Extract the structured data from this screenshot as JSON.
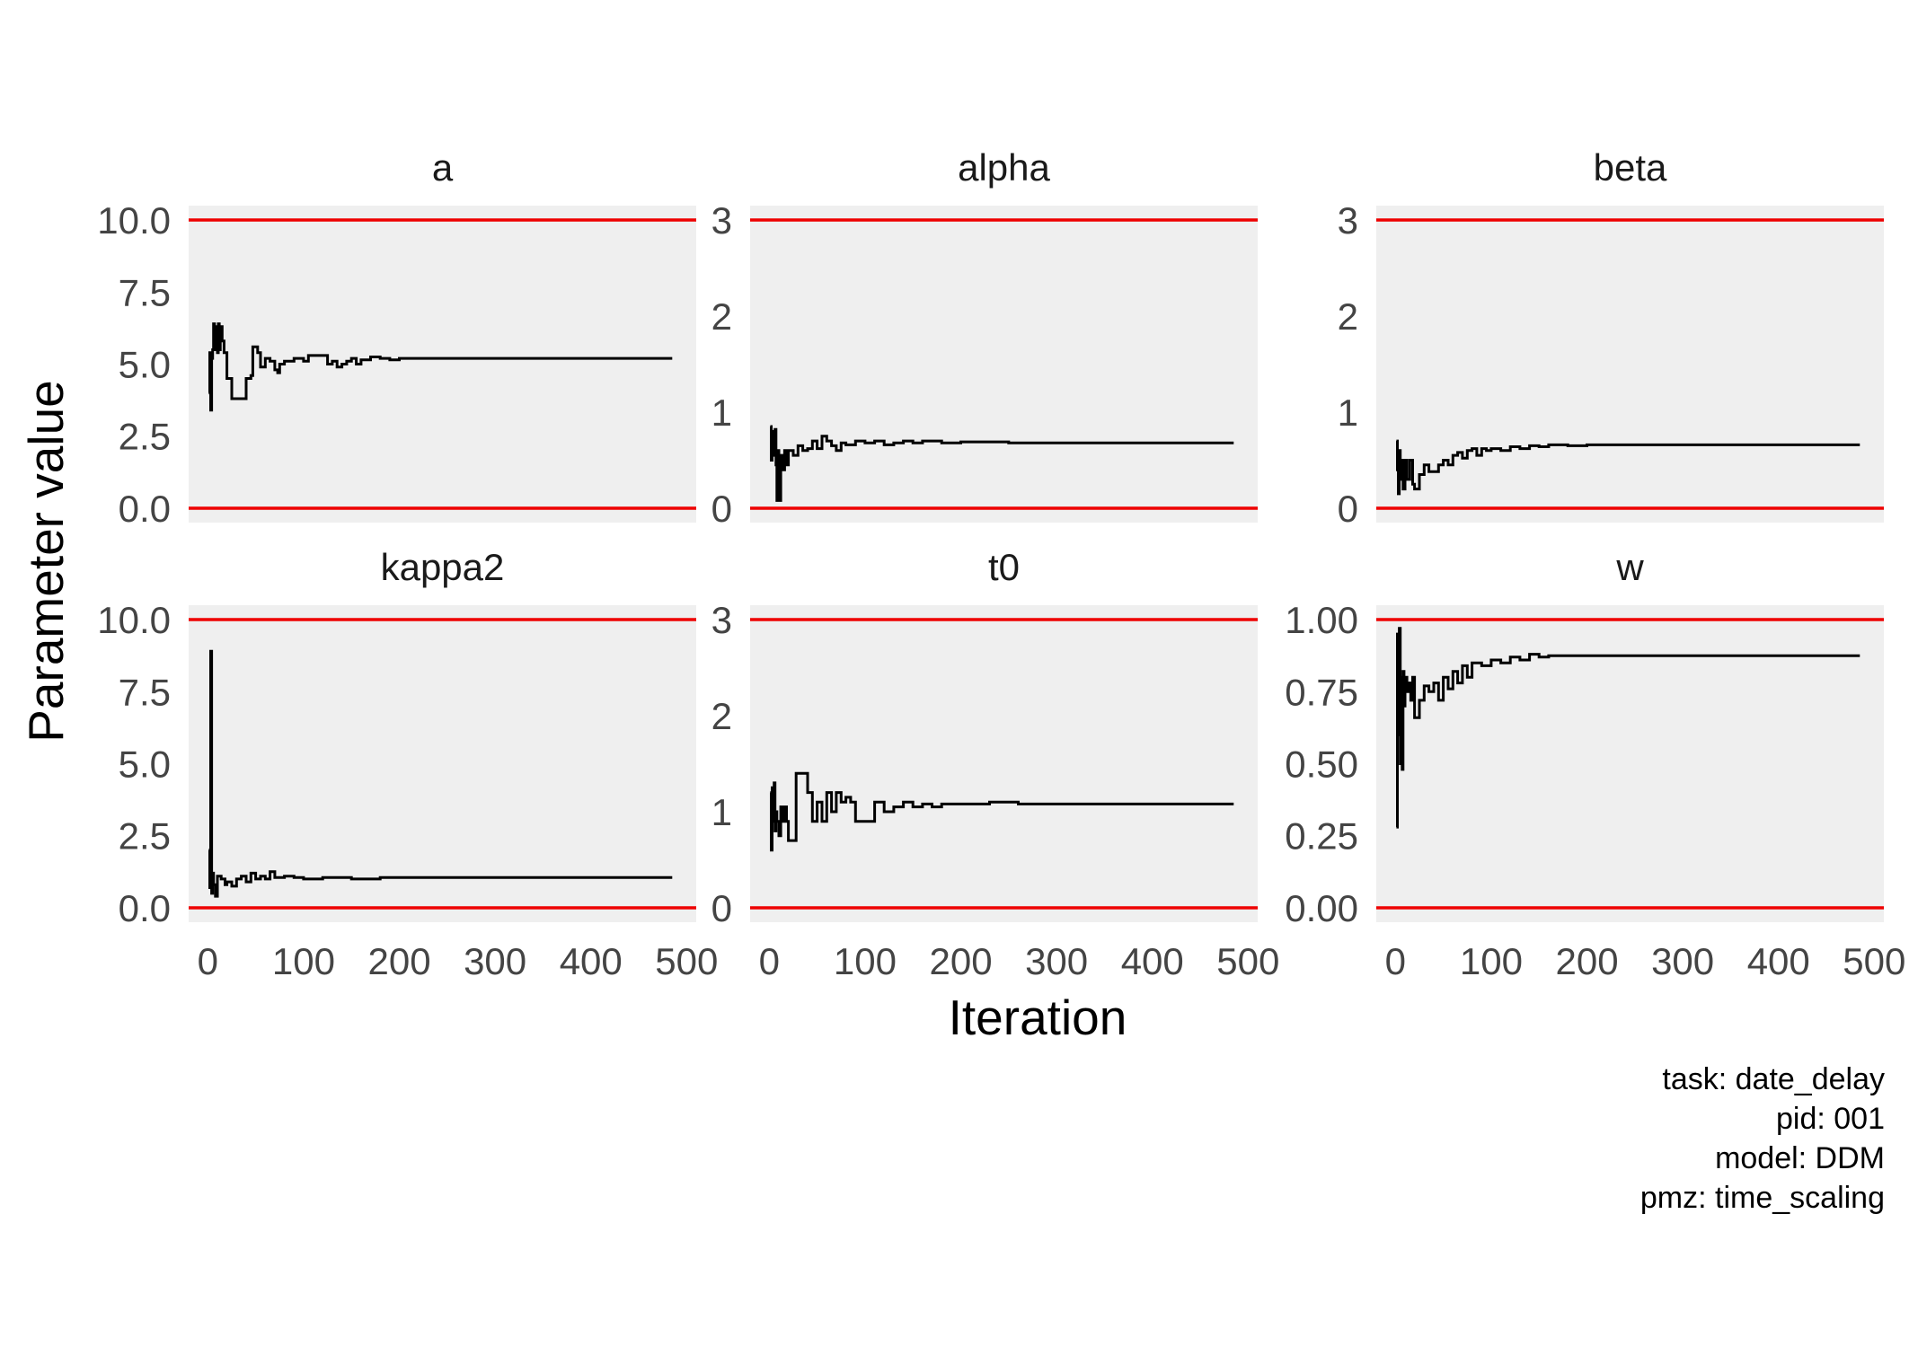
{
  "chart_data": {
    "type": "line",
    "title": "",
    "xlabel": "Iteration",
    "ylabel": "Parameter value",
    "caption": [
      "task: date_delay",
      "pid: 001",
      "model: DDM",
      "pmz: time_scaling"
    ],
    "colors": {
      "trace": "#000000",
      "bounds": "#ee0000",
      "panel_background": "#efefef"
    },
    "grid": false,
    "legend": "none",
    "x_ticks": [
      0,
      100,
      200,
      300,
      400,
      500
    ],
    "xlim": [
      -20,
      510
    ],
    "panels": [
      {
        "name": "a",
        "ylim": [
          -0.5,
          10.5
        ],
        "y_ticks": [
          0,
          2.5,
          5,
          7.5,
          10
        ],
        "y_tick_labels": [
          "0.0",
          "2.5",
          "5.0",
          "7.5",
          "10.0"
        ],
        "bounds": [
          0,
          10
        ],
        "trace": [
          [
            1,
            4.0
          ],
          [
            2,
            5.4
          ],
          [
            3,
            3.4
          ],
          [
            4,
            5.2
          ],
          [
            5,
            5.5
          ],
          [
            6,
            6.4
          ],
          [
            7,
            5.5
          ],
          [
            8,
            6.3
          ],
          [
            9,
            5.8
          ],
          [
            10,
            5.4
          ],
          [
            11,
            6.4
          ],
          [
            12,
            5.5
          ],
          [
            13,
            6.3
          ],
          [
            15,
            5.8
          ],
          [
            17,
            5.4
          ],
          [
            20,
            4.5
          ],
          [
            25,
            3.8
          ],
          [
            35,
            3.8
          ],
          [
            40,
            4.5
          ],
          [
            45,
            4.6
          ],
          [
            47,
            5.6
          ],
          [
            52,
            5.4
          ],
          [
            55,
            4.9
          ],
          [
            60,
            5.2
          ],
          [
            65,
            5.1
          ],
          [
            70,
            4.8
          ],
          [
            73,
            4.7
          ],
          [
            75,
            5.0
          ],
          [
            80,
            5.1
          ],
          [
            90,
            5.2
          ],
          [
            100,
            5.1
          ],
          [
            105,
            5.3
          ],
          [
            120,
            5.3
          ],
          [
            125,
            5.0
          ],
          [
            130,
            5.1
          ],
          [
            135,
            4.9
          ],
          [
            140,
            5.0
          ],
          [
            145,
            5.1
          ],
          [
            150,
            5.2
          ],
          [
            155,
            5.0
          ],
          [
            160,
            5.15
          ],
          [
            170,
            5.25
          ],
          [
            180,
            5.2
          ],
          [
            190,
            5.15
          ],
          [
            200,
            5.2
          ],
          [
            230,
            5.2
          ],
          [
            260,
            5.2
          ],
          [
            300,
            5.2
          ],
          [
            350,
            5.2
          ],
          [
            400,
            5.2
          ],
          [
            450,
            5.2
          ],
          [
            485,
            5.2
          ]
        ]
      },
      {
        "name": "alpha",
        "ylim": [
          -0.15,
          3.15
        ],
        "y_ticks": [
          0,
          1,
          2,
          3
        ],
        "y_tick_labels": [
          "0",
          "1",
          "2",
          "3"
        ],
        "bounds": [
          0,
          3
        ],
        "trace": [
          [
            1,
            0.85
          ],
          [
            2,
            0.5
          ],
          [
            3,
            0.8
          ],
          [
            5,
            0.55
          ],
          [
            6,
            0.82
          ],
          [
            7,
            0.45
          ],
          [
            8,
            0.08
          ],
          [
            9,
            0.6
          ],
          [
            10,
            0.08
          ],
          [
            12,
            0.55
          ],
          [
            14,
            0.4
          ],
          [
            16,
            0.6
          ],
          [
            18,
            0.45
          ],
          [
            20,
            0.6
          ],
          [
            25,
            0.55
          ],
          [
            30,
            0.65
          ],
          [
            35,
            0.6
          ],
          [
            40,
            0.62
          ],
          [
            45,
            0.7
          ],
          [
            50,
            0.62
          ],
          [
            55,
            0.75
          ],
          [
            60,
            0.7
          ],
          [
            65,
            0.65
          ],
          [
            70,
            0.6
          ],
          [
            75,
            0.68
          ],
          [
            80,
            0.66
          ],
          [
            90,
            0.7
          ],
          [
            100,
            0.68
          ],
          [
            110,
            0.7
          ],
          [
            120,
            0.66
          ],
          [
            130,
            0.68
          ],
          [
            140,
            0.7
          ],
          [
            150,
            0.68
          ],
          [
            160,
            0.7
          ],
          [
            180,
            0.68
          ],
          [
            200,
            0.69
          ],
          [
            250,
            0.68
          ],
          [
            300,
            0.68
          ],
          [
            350,
            0.68
          ],
          [
            400,
            0.68
          ],
          [
            450,
            0.68
          ],
          [
            485,
            0.68
          ]
        ]
      },
      {
        "name": "beta",
        "ylim": [
          -0.15,
          3.15
        ],
        "y_ticks": [
          0,
          1,
          2,
          3
        ],
        "y_tick_labels": [
          "0",
          "1",
          "2",
          "3"
        ],
        "bounds": [
          0,
          3
        ],
        "trace": [
          [
            1,
            0.7
          ],
          [
            2,
            0.4
          ],
          [
            3,
            0.15
          ],
          [
            4,
            0.6
          ],
          [
            5,
            0.3
          ],
          [
            6,
            0.5
          ],
          [
            8,
            0.2
          ],
          [
            10,
            0.5
          ],
          [
            12,
            0.3
          ],
          [
            15,
            0.5
          ],
          [
            18,
            0.25
          ],
          [
            20,
            0.2
          ],
          [
            25,
            0.35
          ],
          [
            30,
            0.45
          ],
          [
            35,
            0.38
          ],
          [
            40,
            0.38
          ],
          [
            45,
            0.45
          ],
          [
            50,
            0.5
          ],
          [
            55,
            0.45
          ],
          [
            60,
            0.55
          ],
          [
            65,
            0.58
          ],
          [
            70,
            0.52
          ],
          [
            75,
            0.6
          ],
          [
            80,
            0.62
          ],
          [
            85,
            0.55
          ],
          [
            90,
            0.62
          ],
          [
            95,
            0.6
          ],
          [
            100,
            0.62
          ],
          [
            110,
            0.6
          ],
          [
            120,
            0.64
          ],
          [
            130,
            0.62
          ],
          [
            140,
            0.65
          ],
          [
            150,
            0.64
          ],
          [
            160,
            0.66
          ],
          [
            180,
            0.65
          ],
          [
            200,
            0.66
          ],
          [
            250,
            0.66
          ],
          [
            300,
            0.66
          ],
          [
            350,
            0.66
          ],
          [
            400,
            0.66
          ],
          [
            450,
            0.66
          ],
          [
            485,
            0.66
          ]
        ]
      },
      {
        "name": "kappa2",
        "ylim": [
          -0.5,
          10.5
        ],
        "y_ticks": [
          0,
          2.5,
          5,
          7.5,
          10
        ],
        "y_tick_labels": [
          "0.0",
          "2.5",
          "5.0",
          "7.5",
          "10.0"
        ],
        "bounds": [
          0,
          10
        ],
        "trace": [
          [
            1,
            2.0
          ],
          [
            2,
            0.7
          ],
          [
            3,
            8.9
          ],
          [
            4,
            0.5
          ],
          [
            5,
            1.2
          ],
          [
            6,
            0.8
          ],
          [
            8,
            0.4
          ],
          [
            10,
            1.1
          ],
          [
            14,
            1.0
          ],
          [
            18,
            0.8
          ],
          [
            20,
            0.9
          ],
          [
            25,
            0.75
          ],
          [
            30,
            1.0
          ],
          [
            35,
            1.1
          ],
          [
            40,
            0.9
          ],
          [
            45,
            1.2
          ],
          [
            50,
            1.0
          ],
          [
            55,
            1.1
          ],
          [
            60,
            1.0
          ],
          [
            65,
            1.25
          ],
          [
            70,
            1.05
          ],
          [
            80,
            1.1
          ],
          [
            90,
            1.05
          ],
          [
            100,
            1.0
          ],
          [
            120,
            1.05
          ],
          [
            150,
            1.0
          ],
          [
            180,
            1.05
          ],
          [
            200,
            1.05
          ],
          [
            250,
            1.05
          ],
          [
            300,
            1.05
          ],
          [
            350,
            1.05
          ],
          [
            400,
            1.05
          ],
          [
            450,
            1.05
          ],
          [
            485,
            1.05
          ]
        ]
      },
      {
        "name": "t0",
        "ylim": [
          -0.15,
          3.15
        ],
        "y_ticks": [
          0,
          1,
          2,
          3
        ],
        "y_tick_labels": [
          "0",
          "1",
          "2",
          "3"
        ],
        "bounds": [
          0,
          3
        ],
        "trace": [
          [
            1,
            1.2
          ],
          [
            2,
            0.6
          ],
          [
            3,
            1.25
          ],
          [
            4,
            0.9
          ],
          [
            5,
            1.3
          ],
          [
            6,
            0.8
          ],
          [
            7,
            1.0
          ],
          [
            8,
            0.9
          ],
          [
            10,
            0.75
          ],
          [
            12,
            1.05
          ],
          [
            14,
            0.9
          ],
          [
            16,
            1.05
          ],
          [
            18,
            0.9
          ],
          [
            20,
            0.7
          ],
          [
            25,
            0.7
          ],
          [
            28,
            1.4
          ],
          [
            35,
            1.4
          ],
          [
            40,
            1.2
          ],
          [
            45,
            0.9
          ],
          [
            50,
            1.1
          ],
          [
            55,
            0.9
          ],
          [
            60,
            1.2
          ],
          [
            65,
            1.0
          ],
          [
            70,
            1.2
          ],
          [
            75,
            1.1
          ],
          [
            80,
            1.15
          ],
          [
            85,
            1.1
          ],
          [
            90,
            0.9
          ],
          [
            100,
            0.9
          ],
          [
            110,
            1.1
          ],
          [
            120,
            1.0
          ],
          [
            130,
            1.05
          ],
          [
            140,
            1.1
          ],
          [
            150,
            1.05
          ],
          [
            160,
            1.08
          ],
          [
            170,
            1.05
          ],
          [
            180,
            1.08
          ],
          [
            200,
            1.08
          ],
          [
            230,
            1.1
          ],
          [
            260,
            1.08
          ],
          [
            300,
            1.08
          ],
          [
            350,
            1.08
          ],
          [
            400,
            1.08
          ],
          [
            450,
            1.08
          ],
          [
            485,
            1.08
          ]
        ]
      },
      {
        "name": "w",
        "ylim": [
          -0.05,
          1.05
        ],
        "y_ticks": [
          0,
          0.25,
          0.5,
          0.75,
          1.0
        ],
        "y_tick_labels": [
          "0.00",
          "0.25",
          "0.50",
          "0.75",
          "1.00"
        ],
        "bounds": [
          0,
          1
        ],
        "trace": [
          [
            1,
            0.28
          ],
          [
            2,
            0.95
          ],
          [
            3,
            0.6
          ],
          [
            4,
            0.97
          ],
          [
            5,
            0.5
          ],
          [
            6,
            0.8
          ],
          [
            7,
            0.48
          ],
          [
            8,
            0.82
          ],
          [
            9,
            0.7
          ],
          [
            10,
            0.8
          ],
          [
            12,
            0.75
          ],
          [
            14,
            0.78
          ],
          [
            16,
            0.72
          ],
          [
            18,
            0.8
          ],
          [
            20,
            0.66
          ],
          [
            25,
            0.72
          ],
          [
            30,
            0.77
          ],
          [
            35,
            0.75
          ],
          [
            40,
            0.78
          ],
          [
            45,
            0.72
          ],
          [
            50,
            0.8
          ],
          [
            55,
            0.76
          ],
          [
            60,
            0.82
          ],
          [
            65,
            0.78
          ],
          [
            70,
            0.84
          ],
          [
            75,
            0.8
          ],
          [
            80,
            0.85
          ],
          [
            90,
            0.84
          ],
          [
            100,
            0.86
          ],
          [
            110,
            0.85
          ],
          [
            120,
            0.87
          ],
          [
            130,
            0.86
          ],
          [
            140,
            0.88
          ],
          [
            150,
            0.87
          ],
          [
            160,
            0.875
          ],
          [
            180,
            0.875
          ],
          [
            200,
            0.875
          ],
          [
            250,
            0.875
          ],
          [
            300,
            0.875
          ],
          [
            350,
            0.875
          ],
          [
            400,
            0.875
          ],
          [
            450,
            0.875
          ],
          [
            485,
            0.875
          ]
        ]
      }
    ]
  }
}
